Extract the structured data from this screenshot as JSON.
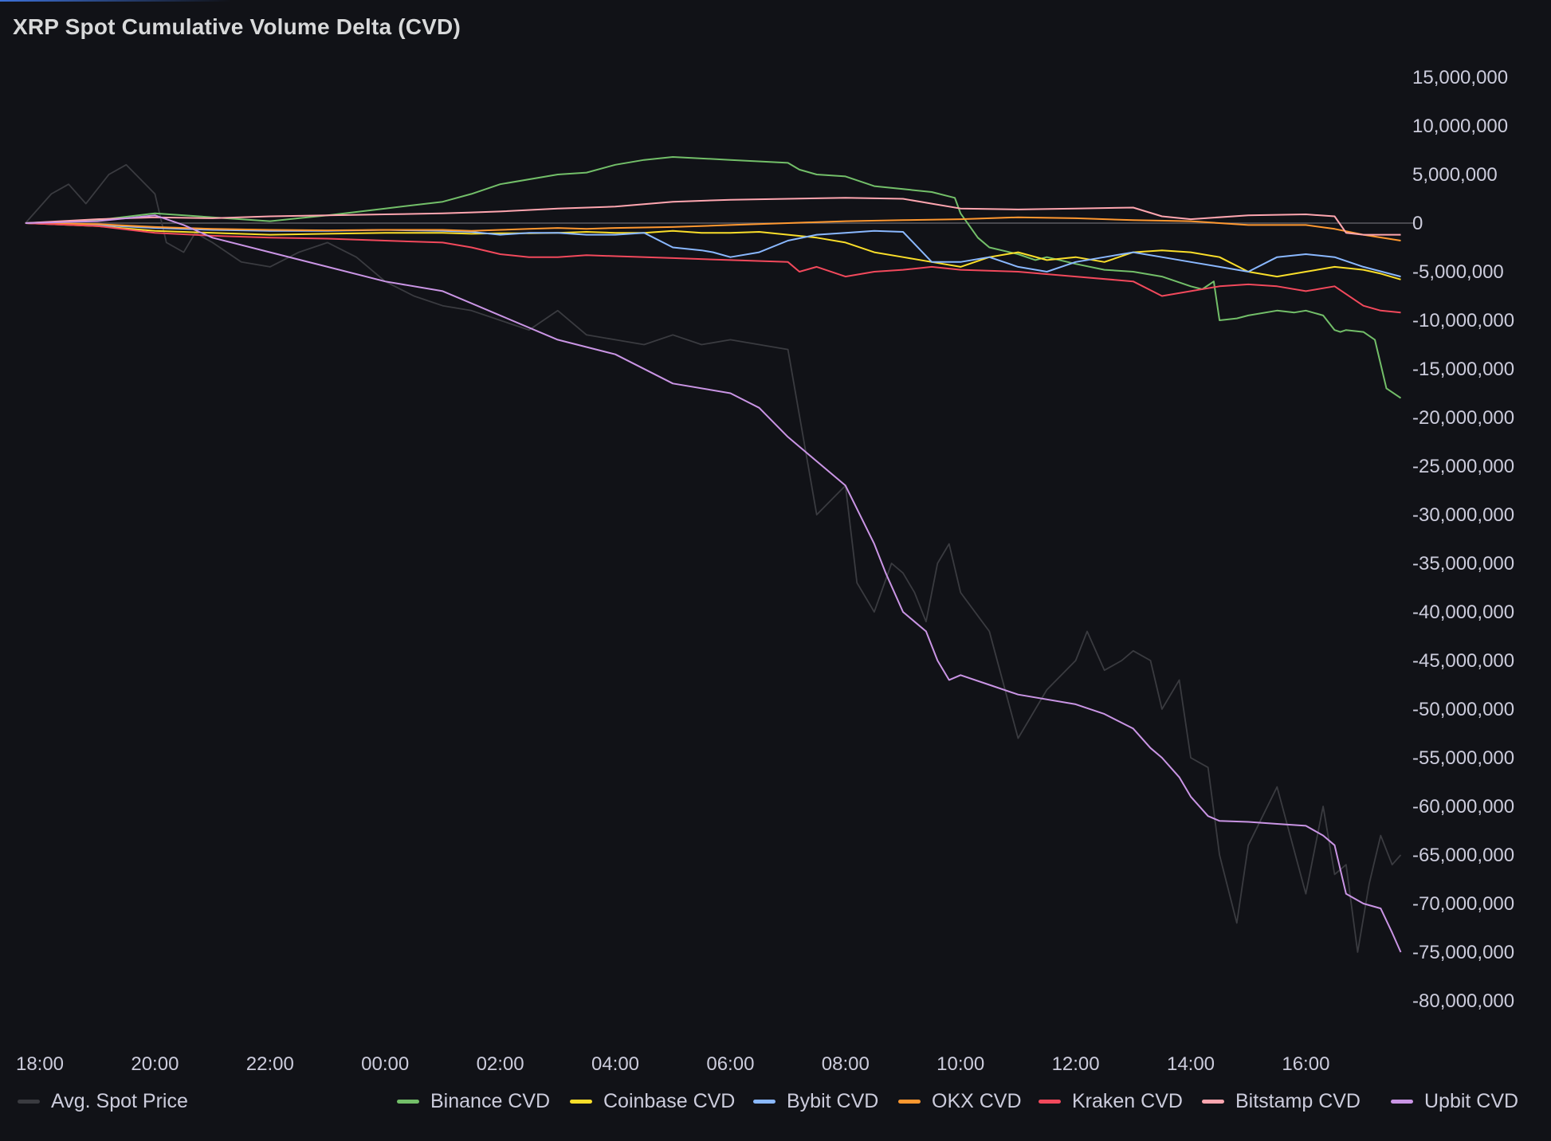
{
  "panel": {
    "title": "XRP Spot Cumulative Volume Delta (CVD)"
  },
  "chart_data": {
    "type": "line",
    "title": "XRP Spot Cumulative Volume Delta (CVD)",
    "xlabel": "",
    "ylabel": "",
    "x_unit": "hours since 18:00",
    "x_ticks": [
      "18:00",
      "20:00",
      "22:00",
      "00:00",
      "02:00",
      "04:00",
      "06:00",
      "08:00",
      "10:00",
      "12:00",
      "14:00",
      "16:00"
    ],
    "y_ticks": [
      15000000,
      10000000,
      5000000,
      0,
      -5000000,
      -10000000,
      -15000000,
      -20000000,
      -25000000,
      -30000000,
      -35000000,
      -40000000,
      -45000000,
      -50000000,
      -55000000,
      -60000000,
      -65000000,
      -70000000,
      -75000000,
      -80000000
    ],
    "y_tick_labels": [
      "15,000,000",
      "10,000,000",
      "5,000,000",
      "0",
      "-5,000,000",
      "-10,000,000",
      "-15,000,000",
      "-20,000,000",
      "-25,000,000",
      "-30,000,000",
      "-35,000,000",
      "-40,000,000",
      "-45,000,000",
      "-50,000,000",
      "-55,000,000",
      "-60,000,000",
      "-65,000,000",
      "-70,000,000",
      "-75,000,000",
      "-80,000,000"
    ],
    "ylim": [
      -82000000,
      17000000
    ],
    "grid": false,
    "legend": "bottom",
    "series": [
      {
        "name": "Avg. Spot Price",
        "color": "#3a3b40",
        "axis": "price",
        "x": [
          -0.25,
          0.2,
          0.5,
          0.8,
          1.2,
          1.5,
          2.0,
          2.2,
          2.5,
          2.7,
          3.0,
          3.5,
          4.0,
          4.5,
          5.0,
          5.5,
          6.0,
          6.5,
          7.0,
          7.5,
          8.0,
          8.5,
          9.0,
          9.5,
          10.0,
          10.5,
          11.0,
          11.5,
          12.0,
          12.5,
          13.0,
          13.5,
          14.0,
          14.2,
          14.5,
          14.8,
          15.0,
          15.2,
          15.4,
          15.6,
          15.8,
          16.0,
          16.5,
          17.0,
          17.5,
          18.0,
          18.2,
          18.5,
          18.8,
          19.0,
          19.3,
          19.5,
          19.8,
          20.0,
          20.3,
          20.5,
          20.8,
          21.0,
          21.5,
          22.0,
          22.3,
          22.5,
          22.7,
          22.9,
          23.1,
          23.3,
          23.5,
          23.65
        ],
        "y": [
          0,
          3000000,
          4000000,
          2000000,
          5000000,
          6000000,
          3000000,
          -2000000,
          -3000000,
          -1000000,
          -2000000,
          -4000000,
          -4500000,
          -3000000,
          -2000000,
          -3500000,
          -6000000,
          -7500000,
          -8500000,
          -9000000,
          -10000000,
          -11000000,
          -9000000,
          -11500000,
          -12000000,
          -12500000,
          -11500000,
          -12500000,
          -12000000,
          -12500000,
          -13000000,
          -30000000,
          -27000000,
          -37000000,
          -40000000,
          -35000000,
          -36000000,
          -38000000,
          -41000000,
          -35000000,
          -33000000,
          -38000000,
          -42000000,
          -53000000,
          -48000000,
          -45000000,
          -42000000,
          -46000000,
          -45000000,
          -44000000,
          -45000000,
          -50000000,
          -47000000,
          -55000000,
          -56000000,
          -65000000,
          -72000000,
          -64000000,
          -58000000,
          -69000000,
          -60000000,
          -67000000,
          -66000000,
          -75000000,
          -68000000,
          -63000000,
          -66000000,
          -65000000
        ]
      },
      {
        "name": "Binance CVD",
        "color": "#73bf69",
        "x": [
          -0.25,
          1.0,
          2.0,
          3.0,
          4.0,
          5.0,
          6.0,
          7.0,
          7.5,
          8.0,
          9.0,
          9.5,
          10.0,
          10.5,
          11.0,
          12.0,
          13.0,
          13.2,
          13.5,
          14.0,
          14.5,
          15.0,
          15.5,
          15.9,
          16.0,
          16.3,
          16.5,
          17.0,
          17.3,
          17.5,
          18.0,
          18.5,
          19.0,
          19.5,
          20.0,
          20.2,
          20.4,
          20.5,
          20.8,
          21.0,
          21.5,
          21.8,
          22.0,
          22.3,
          22.5,
          22.6,
          22.7,
          23.0,
          23.2,
          23.4,
          23.65
        ],
        "y": [
          0,
          300000,
          1000000,
          600000,
          200000,
          800000,
          1500000,
          2200000,
          3000000,
          4000000,
          5000000,
          5200000,
          6000000,
          6500000,
          6800000,
          6500000,
          6200000,
          5500000,
          5000000,
          4800000,
          3800000,
          3500000,
          3200000,
          2600000,
          1000000,
          -1500000,
          -2500000,
          -3200000,
          -3800000,
          -3500000,
          -4200000,
          -4800000,
          -5000000,
          -5500000,
          -6500000,
          -6800000,
          -6000000,
          -10000000,
          -9800000,
          -9500000,
          -9000000,
          -9200000,
          -9000000,
          -9500000,
          -11000000,
          -11200000,
          -11000000,
          -11200000,
          -12000000,
          -17000000,
          -18000000
        ]
      },
      {
        "name": "Coinbase CVD",
        "color": "#fade2a",
        "x": [
          -0.25,
          1.0,
          2.0,
          3.0,
          4.0,
          5.0,
          6.0,
          7.0,
          7.5,
          8.0,
          8.5,
          9.0,
          9.5,
          10.0,
          10.5,
          11.0,
          11.5,
          12.0,
          12.5,
          13.0,
          13.5,
          14.0,
          14.5,
          15.0,
          15.5,
          16.0,
          16.5,
          17.0,
          17.5,
          18.0,
          18.5,
          19.0,
          19.5,
          20.0,
          20.5,
          21.0,
          21.5,
          22.0,
          22.5,
          23.0,
          23.3,
          23.65
        ],
        "y": [
          0,
          -300000,
          -800000,
          -1000000,
          -1200000,
          -1100000,
          -1000000,
          -1000000,
          -1100000,
          -1050000,
          -1050000,
          -1000000,
          -900000,
          -1000000,
          -1000000,
          -800000,
          -1000000,
          -1000000,
          -900000,
          -1200000,
          -1500000,
          -2000000,
          -3000000,
          -3500000,
          -4000000,
          -4500000,
          -3500000,
          -3000000,
          -3800000,
          -3500000,
          -4000000,
          -3000000,
          -2800000,
          -3000000,
          -3500000,
          -5000000,
          -5500000,
          -5000000,
          -4500000,
          -4800000,
          -5200000,
          -5800000
        ]
      },
      {
        "name": "Bybit CVD",
        "color": "#8ab8ff",
        "x": [
          -0.25,
          1.0,
          2.0,
          3.0,
          4.0,
          5.0,
          6.0,
          7.0,
          7.5,
          8.0,
          8.5,
          9.0,
          9.5,
          10.0,
          10.5,
          11.0,
          11.5,
          11.7,
          12.0,
          12.5,
          13.0,
          13.5,
          14.0,
          14.5,
          15.0,
          15.5,
          16.0,
          16.5,
          17.0,
          17.5,
          18.0,
          18.5,
          19.0,
          19.5,
          20.0,
          20.5,
          21.0,
          21.5,
          22.0,
          22.5,
          23.0,
          23.65
        ],
        "y": [
          0,
          -200000,
          -500000,
          -700000,
          -800000,
          -800000,
          -700000,
          -800000,
          -900000,
          -1200000,
          -1000000,
          -1000000,
          -1200000,
          -1200000,
          -1000000,
          -2500000,
          -2800000,
          -3000000,
          -3500000,
          -3000000,
          -1800000,
          -1200000,
          -1000000,
          -800000,
          -900000,
          -4000000,
          -4000000,
          -3500000,
          -4500000,
          -5000000,
          -4000000,
          -3500000,
          -3000000,
          -3500000,
          -4000000,
          -4500000,
          -5000000,
          -3500000,
          -3200000,
          -3500000,
          -4500000,
          -5500000
        ]
      },
      {
        "name": "OKX CVD",
        "color": "#ff9830",
        "x": [
          -0.25,
          1.0,
          2.0,
          3.0,
          4.0,
          5.0,
          6.0,
          7.0,
          7.5,
          8.0,
          8.5,
          9.0,
          9.5,
          10.0,
          11.0,
          12.0,
          13.0,
          14.0,
          15.0,
          16.0,
          17.0,
          18.0,
          19.0,
          20.0,
          21.0,
          22.0,
          22.5,
          23.0,
          23.65
        ],
        "y": [
          0,
          -100000,
          -400000,
          -600000,
          -700000,
          -750000,
          -700000,
          -700000,
          -800000,
          -700000,
          -600000,
          -500000,
          -600000,
          -500000,
          -400000,
          -200000,
          0,
          200000,
          300000,
          400000,
          600000,
          500000,
          300000,
          200000,
          -200000,
          -200000,
          -600000,
          -1200000,
          -1800000
        ]
      },
      {
        "name": "Kraken CVD",
        "color": "#f2495c",
        "x": [
          -0.25,
          1.0,
          2.0,
          3.0,
          4.0,
          5.0,
          6.0,
          7.0,
          7.5,
          8.0,
          8.5,
          9.0,
          9.5,
          10.0,
          11.0,
          12.0,
          13.0,
          13.2,
          13.5,
          14.0,
          14.5,
          15.0,
          15.5,
          16.0,
          17.0,
          18.0,
          19.0,
          19.5,
          20.0,
          20.5,
          21.0,
          21.5,
          22.0,
          22.5,
          23.0,
          23.3,
          23.65
        ],
        "y": [
          0,
          -300000,
          -1000000,
          -1300000,
          -1500000,
          -1600000,
          -1800000,
          -2000000,
          -2500000,
          -3200000,
          -3500000,
          -3500000,
          -3300000,
          -3400000,
          -3600000,
          -3800000,
          -4000000,
          -5000000,
          -4500000,
          -5500000,
          -5000000,
          -4800000,
          -4500000,
          -4800000,
          -5000000,
          -5500000,
          -6000000,
          -7500000,
          -7000000,
          -6500000,
          -6300000,
          -6500000,
          -7000000,
          -6500000,
          -8500000,
          -9000000,
          -9200000
        ]
      },
      {
        "name": "Bitstamp CVD",
        "color": "#ffa6b0",
        "x": [
          -0.25,
          1.0,
          2.0,
          3.0,
          4.0,
          5.0,
          6.0,
          7.0,
          7.5,
          8.0,
          9.0,
          10.0,
          11.0,
          12.0,
          13.0,
          14.0,
          15.0,
          15.5,
          16.0,
          17.0,
          18.0,
          19.0,
          19.5,
          20.0,
          21.0,
          22.0,
          22.5,
          22.7,
          23.0,
          23.65
        ],
        "y": [
          0,
          400000,
          600000,
          500000,
          700000,
          800000,
          900000,
          1000000,
          1100000,
          1200000,
          1500000,
          1700000,
          2200000,
          2400000,
          2500000,
          2600000,
          2500000,
          2000000,
          1500000,
          1400000,
          1500000,
          1600000,
          700000,
          400000,
          800000,
          900000,
          700000,
          -1000000,
          -1200000,
          -1200000
        ]
      },
      {
        "name": "Upbit CVD",
        "color": "#ca95e5",
        "x": [
          -0.25,
          1.0,
          2.0,
          2.5,
          3.0,
          4.0,
          5.0,
          6.0,
          7.0,
          8.0,
          9.0,
          10.0,
          11.0,
          12.0,
          12.5,
          13.0,
          14.0,
          14.5,
          14.7,
          15.0,
          15.2,
          15.4,
          15.6,
          15.8,
          16.0,
          16.5,
          17.0,
          18.0,
          18.5,
          19.0,
          19.3,
          19.5,
          19.8,
          20.0,
          20.3,
          20.5,
          21.0,
          21.5,
          22.0,
          22.3,
          22.5,
          22.7,
          23.0,
          23.3,
          23.5,
          23.65
        ],
        "y": [
          0,
          200000,
          800000,
          -200000,
          -1500000,
          -3000000,
          -4500000,
          -6000000,
          -7000000,
          -9500000,
          -12000000,
          -13500000,
          -16500000,
          -17500000,
          -19000000,
          -22000000,
          -27000000,
          -33000000,
          -36000000,
          -40000000,
          -41000000,
          -42000000,
          -45000000,
          -47000000,
          -46500000,
          -47500000,
          -48500000,
          -49500000,
          -50500000,
          -52000000,
          -54000000,
          -55000000,
          -57000000,
          -59000000,
          -61000000,
          -61500000,
          -61600000,
          -61800000,
          -62000000,
          -63000000,
          -64000000,
          -69000000,
          -70000000,
          -70500000,
          -73000000,
          -75000000
        ]
      }
    ]
  }
}
